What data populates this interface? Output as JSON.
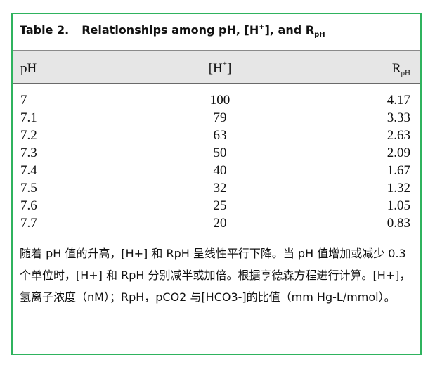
{
  "table": {
    "title_num": "Table 2.",
    "title_main": "Relationships among pH, [H",
    "title_sup": "+",
    "title_mid": "], and R",
    "title_sub": "pH",
    "headers": {
      "ph": "pH",
      "h_pre": "[H",
      "h_sup": "+",
      "h_post": "]",
      "r_main": "R",
      "r_sub": "pH"
    },
    "rows": [
      {
        "ph": "7",
        "h": "100",
        "r": "4.17"
      },
      {
        "ph": "7.1",
        "h": "79",
        "r": "3.33"
      },
      {
        "ph": "7.2",
        "h": "63",
        "r": "2.63"
      },
      {
        "ph": "7.3",
        "h": "50",
        "r": "2.09"
      },
      {
        "ph": "7.4",
        "h": "40",
        "r": "1.67"
      },
      {
        "ph": "7.5",
        "h": "32",
        "r": "1.32"
      },
      {
        "ph": "7.6",
        "h": "25",
        "r": "1.05"
      },
      {
        "ph": "7.7",
        "h": "20",
        "r": "0.83"
      }
    ],
    "note": "随着 pH 值的升高，[H+] 和 RpH 呈线性平行下降。当 pH 值增加或减少 0.3 个单位时，[H+] 和 RpH 分别减半或加倍。根据亨德森方程进行计算。[H+]，氢离子浓度（nM）；RpH，pCO2 与[HCO3-]的比值（mm Hg-L/mmol）。"
  },
  "colors": {
    "frame_border": "#2fb35e",
    "header_bg": "#e6e6e6"
  }
}
